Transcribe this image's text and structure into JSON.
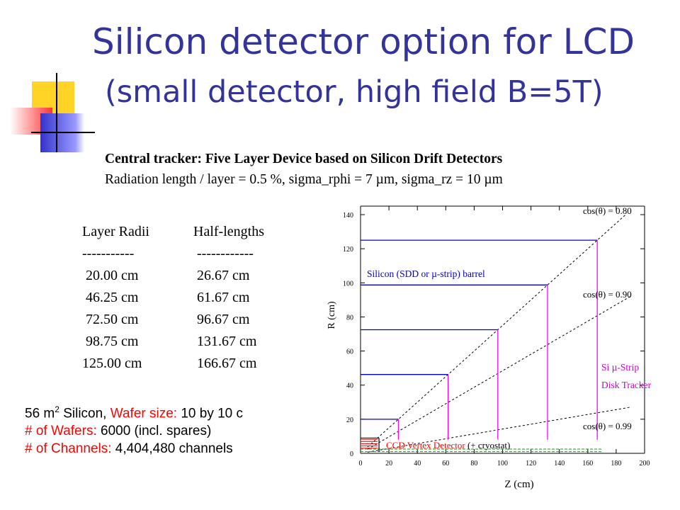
{
  "title": {
    "line1": "Silicon detector option for LCD",
    "line2": "(small detector, high field B=5T)"
  },
  "subtitle": {
    "line1": "Central tracker: Five Layer Device based on Silicon Drift Detectors",
    "line2": "Radiation length / layer = 0.5 %, sigma_rphi = 7 µm, sigma_rz = 10 µm"
  },
  "layer_table": {
    "col1_header": "Layer Radii",
    "col2_header": "Half-lengths",
    "col1_rule": "-----------",
    "col2_rule": " ------------",
    "rows": [
      {
        "radius": " 20.00 cm",
        "half_length": " 26.67 cm"
      },
      {
        "radius": " 46.25 cm",
        "half_length": " 61.67 cm"
      },
      {
        "radius": " 72.50 cm",
        "half_length": " 96.67 cm"
      },
      {
        "radius": " 98.75 cm",
        "half_length": " 131.67 cm"
      },
      {
        "radius": "125.00 cm",
        "half_length": " 166.67 cm"
      }
    ]
  },
  "stats": {
    "line1_prefix": "56 m",
    "line1_sup": "2",
    "line1_mid": " Silicon, ",
    "line1_red": "Wafer size:",
    "line1_value": " 10 by 10 c",
    "line2_label": "# of Wafers:",
    "line2_value": " 6000 (incl. spares)",
    "line3_label": "# of Channels:",
    "line3_value": " 4,404,480 channels"
  },
  "diagram": {
    "y_axis_label": "R (cm)",
    "x_axis_label": "Z (cm)",
    "x_ticks": [
      "0",
      "20",
      "40",
      "60",
      "80",
      "100",
      "120",
      "140",
      "160",
      "180",
      "200"
    ],
    "y_ticks": [
      "0",
      "20",
      "40",
      "60",
      "80",
      "100",
      "120",
      "140"
    ],
    "x_range": [
      0,
      200
    ],
    "y_range": [
      0,
      145
    ],
    "barrel_label": "Silicon (SDD or µ-strip) barrel",
    "disk_label_line1": "Si µ-Strip",
    "disk_label_line2": "Disk Tracker",
    "ccd_label_red": "CCD Vertex Detector",
    "ccd_label_black": " (+ cryostat)",
    "cos_lines": [
      {
        "label": "cos(θ) = 0.80",
        "cos": 0.8
      },
      {
        "label": "cos(θ) = 0.90",
        "cos": 0.9
      },
      {
        "label": "cos(θ) = 0.99",
        "cos": 0.99
      }
    ],
    "barrel_layers": [
      {
        "r": 20.0,
        "z": 26.67
      },
      {
        "r": 46.25,
        "z": 61.67
      },
      {
        "r": 72.5,
        "z": 96.67
      },
      {
        "r": 98.75,
        "z": 131.67
      },
      {
        "r": 125.0,
        "z": 166.67
      }
    ],
    "colors": {
      "barrel": "#0000cc",
      "disk": "#ff00ff",
      "cos": "#000000",
      "ccd": "#ff0000",
      "beam": "#00aa00"
    }
  }
}
